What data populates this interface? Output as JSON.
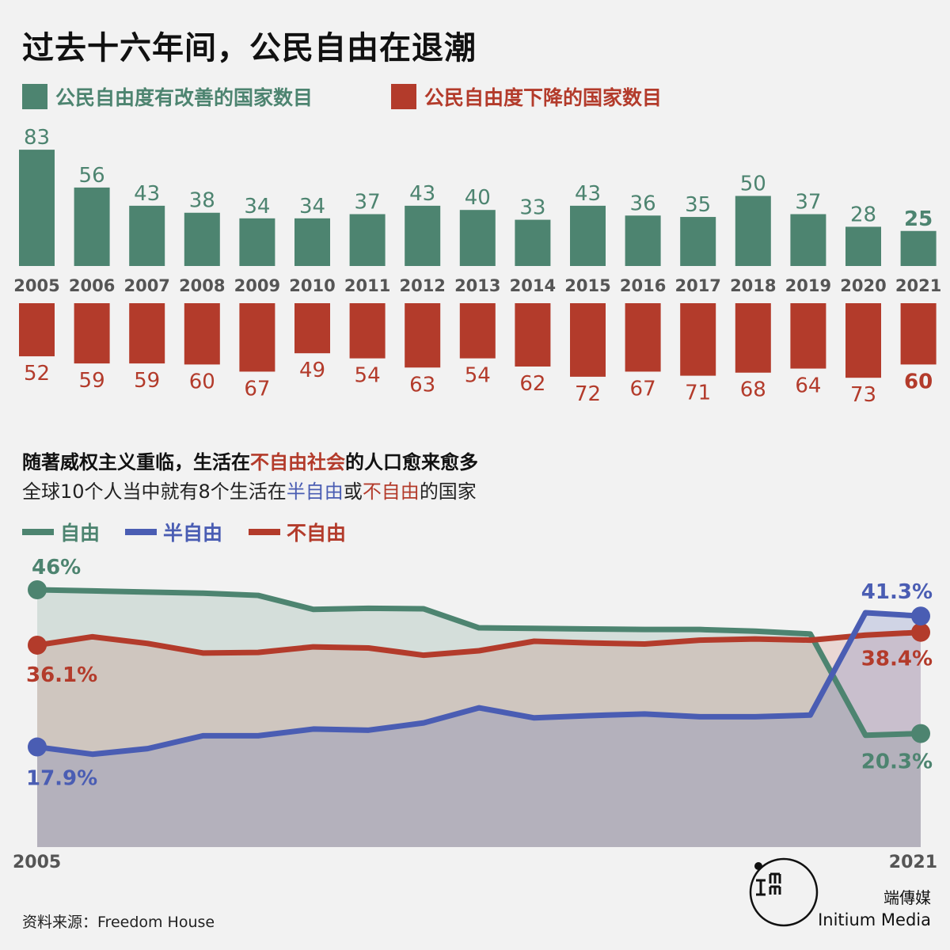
{
  "title": "过去十六年间，公民自由在退潮",
  "legend_top": {
    "improved": "公民自由度有改善的国家数目",
    "declined": "公民自由度下降的国家数目"
  },
  "sub": {
    "line1_a": "随著威权主义重临，生活在",
    "line1_b": "不自由社会",
    "line1_c": "的人口愈来愈多",
    "line2_a": "全球10个人当中就有8个生活在",
    "line2_b": "半自由",
    "line2_c": "或",
    "line2_d": "不自由",
    "line2_e": "的国家"
  },
  "legend_line": {
    "free": "自由",
    "partly": "半自由",
    "notfree": "不自由"
  },
  "source": "资料来源：Freedom House",
  "brand": {
    "cn": "端傳媒",
    "en": "Initium Media"
  },
  "colors": {
    "green": "#4d8470",
    "red": "#b33b2b",
    "blue": "#4a5db3",
    "gray": "#555555"
  },
  "chart_data": [
    {
      "type": "bar",
      "categories": [
        "2005",
        "2006",
        "2007",
        "2008",
        "2009",
        "2010",
        "2011",
        "2012",
        "2013",
        "2014",
        "2015",
        "2016",
        "2017",
        "2018",
        "2019",
        "2020",
        "2021"
      ],
      "series": [
        {
          "name": "公民自由度有改善的国家数目",
          "values": [
            83,
            56,
            43,
            38,
            34,
            34,
            37,
            43,
            40,
            33,
            43,
            36,
            35,
            50,
            37,
            28,
            25
          ]
        },
        {
          "name": "公民自由度下降的国家数目",
          "values": [
            52,
            59,
            59,
            60,
            67,
            49,
            54,
            63,
            54,
            62,
            72,
            67,
            71,
            68,
            64,
            73,
            60
          ]
        }
      ],
      "value_labels_up": [
        "83",
        "56",
        "43",
        "38",
        "34",
        "34",
        "37",
        "43",
        "40",
        "33",
        "43",
        "36",
        "35",
        "50",
        "37",
        "28",
        "25"
      ],
      "value_labels_down": [
        "52",
        "59",
        "59",
        "60",
        "67",
        "49",
        "54",
        "63",
        "54",
        "62",
        "72",
        "67",
        "71",
        "68",
        "64",
        "73",
        "60"
      ]
    },
    {
      "type": "area",
      "x_labels": [
        "2005",
        "2021"
      ],
      "x": [
        2005,
        2006,
        2007,
        2008,
        2009,
        2010,
        2011,
        2012,
        2013,
        2014,
        2015,
        2016,
        2017,
        2018,
        2019,
        2020,
        2021
      ],
      "ylim": [
        0,
        50
      ],
      "series": [
        {
          "name": "自由",
          "values": [
            46.0,
            45.8,
            45.6,
            45.4,
            45.0,
            42.5,
            42.7,
            42.6,
            39.2,
            39.1,
            39.0,
            38.9,
            38.9,
            38.6,
            38.1,
            20.0,
            20.3
          ]
        },
        {
          "name": "半自由",
          "values": [
            17.9,
            16.6,
            17.6,
            19.9,
            19.9,
            21.1,
            20.9,
            22.2,
            24.9,
            23.1,
            23.5,
            23.8,
            23.3,
            23.3,
            23.6,
            41.9,
            41.3
          ]
        },
        {
          "name": "不自由",
          "values": [
            36.1,
            37.6,
            36.4,
            34.7,
            34.8,
            35.8,
            35.6,
            34.3,
            35.1,
            36.8,
            36.5,
            36.3,
            37.0,
            37.2,
            37.0,
            37.9,
            38.4
          ]
        }
      ],
      "end_labels": {
        "free_start": "46%",
        "free_end": "20.3%",
        "partly_start": "17.9%",
        "partly_end": "41.3%",
        "notfree_start": "36.1%",
        "notfree_end": "38.4%"
      }
    }
  ]
}
